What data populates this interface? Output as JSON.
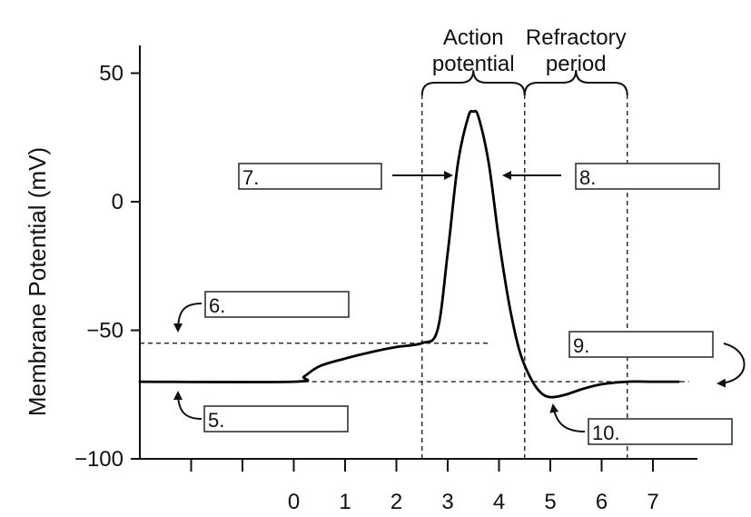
{
  "chart_data": {
    "type": "line",
    "ylabel": "Membrane Potential (mV)",
    "xlabel": "",
    "xlim": [
      -3,
      8
    ],
    "ylim": [
      -100,
      50
    ],
    "xticks": [
      0,
      1,
      2,
      3,
      4,
      5,
      6,
      7
    ],
    "yticks": [
      50,
      0,
      -50,
      -100
    ],
    "xtick_labels": [
      "0",
      "1",
      "2",
      "3",
      "4",
      "5",
      "6",
      "7"
    ],
    "ytick_labels": [
      "50",
      "0",
      "−50",
      "−100"
    ],
    "unlabeled_xticks": [
      -2,
      -1
    ],
    "series": [
      {
        "x": [
          -3,
          0,
          0.2,
          0.5,
          1,
          1.5,
          2,
          2.5,
          2.8,
          3,
          3.2,
          3.4,
          3.5,
          3.6,
          3.8,
          4,
          4.2,
          4.4,
          4.6,
          4.8,
          5,
          5.3,
          5.6,
          6,
          6.5,
          7,
          7.5
        ],
        "y": [
          -70,
          -70,
          -68,
          -64,
          -61,
          -58.5,
          -56.5,
          -55,
          -50,
          -20,
          15,
          33,
          35,
          33,
          15,
          -15,
          -40,
          -58,
          -68,
          -74,
          -76,
          -75,
          -73,
          -71,
          -70,
          -70,
          -70
        ]
      }
    ],
    "threshold_line": {
      "y": -55,
      "x_range": [
        -3,
        3.8
      ]
    },
    "resting_line": {
      "y": -70,
      "x_range": [
        0.2,
        7.7
      ]
    },
    "region_lines_x": [
      2.5,
      4.5,
      6.5
    ],
    "brackets": [
      {
        "label_lines": [
          "Action",
          "potential"
        ],
        "x_range": [
          2.5,
          4.5
        ]
      },
      {
        "label_lines": [
          "Refractory",
          "period"
        ],
        "x_range": [
          4.5,
          6.5
        ]
      }
    ]
  },
  "labels": {
    "box5": "5.",
    "box6": "6.",
    "box7": "7.",
    "box8": "8.",
    "box9": "9.",
    "box10": "10."
  }
}
